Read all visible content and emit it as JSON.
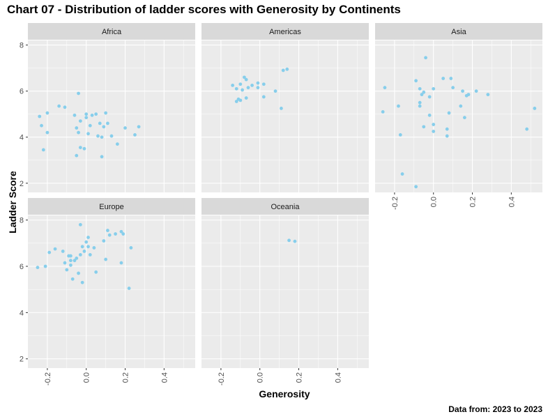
{
  "title": "Chart 07 - Distribution of ladder scores with Generosity by Continents",
  "caption": "Data from: 2023  to  2023",
  "chart_data": {
    "type": "scatter",
    "xlabel": "Generosity",
    "ylabel": "Ladder Score",
    "xlim": [
      -0.3,
      0.56
    ],
    "ylim": [
      1.6,
      8.2
    ],
    "x_ticks": [
      -0.2,
      0.0,
      0.2,
      0.4
    ],
    "x_tick_labels": [
      "-0.2",
      "0.0",
      "0.2",
      "0.4"
    ],
    "y_ticks": [
      2,
      4,
      6,
      8
    ],
    "y_tick_labels": [
      "2",
      "4",
      "6",
      "8"
    ],
    "point_color": "#87CEEB",
    "panel_background": "#EBEBEB",
    "strip_background": "#D9D9D9",
    "grid": true,
    "facets": [
      {
        "name": "Africa",
        "points": [
          [
            -0.24,
            4.9
          ],
          [
            -0.23,
            4.5
          ],
          [
            -0.22,
            3.45
          ],
          [
            -0.2,
            5.05
          ],
          [
            -0.2,
            4.2
          ],
          [
            -0.14,
            5.35
          ],
          [
            -0.11,
            5.3
          ],
          [
            -0.06,
            4.95
          ],
          [
            -0.05,
            4.4
          ],
          [
            -0.05,
            3.2
          ],
          [
            -0.04,
            4.2
          ],
          [
            -0.04,
            5.9
          ],
          [
            -0.03,
            3.55
          ],
          [
            -0.03,
            4.7
          ],
          [
            -0.01,
            3.5
          ],
          [
            0.0,
            4.85
          ],
          [
            0.0,
            5.0
          ],
          [
            0.01,
            4.15
          ],
          [
            0.02,
            4.5
          ],
          [
            0.03,
            4.95
          ],
          [
            0.05,
            5.0
          ],
          [
            0.06,
            4.05
          ],
          [
            0.07,
            4.6
          ],
          [
            0.08,
            4.0
          ],
          [
            0.08,
            3.15
          ],
          [
            0.09,
            4.45
          ],
          [
            0.1,
            5.05
          ],
          [
            0.11,
            4.6
          ],
          [
            0.13,
            4.05
          ],
          [
            0.16,
            3.7
          ],
          [
            0.2,
            4.4
          ],
          [
            0.25,
            4.1
          ],
          [
            0.27,
            4.45
          ]
        ]
      },
      {
        "name": "Americas",
        "points": [
          [
            -0.14,
            6.25
          ],
          [
            -0.12,
            5.55
          ],
          [
            -0.12,
            6.1
          ],
          [
            -0.11,
            5.65
          ],
          [
            -0.1,
            5.6
          ],
          [
            -0.1,
            6.3
          ],
          [
            -0.09,
            6.05
          ],
          [
            -0.08,
            6.6
          ],
          [
            -0.07,
            6.5
          ],
          [
            -0.07,
            5.7
          ],
          [
            -0.06,
            6.15
          ],
          [
            -0.04,
            6.25
          ],
          [
            -0.01,
            6.35
          ],
          [
            -0.01,
            6.15
          ],
          [
            0.02,
            6.3
          ],
          [
            0.02,
            5.75
          ],
          [
            0.08,
            6.0
          ],
          [
            0.11,
            5.25
          ],
          [
            0.12,
            6.9
          ],
          [
            0.14,
            6.95
          ]
        ]
      },
      {
        "name": "Asia",
        "points": [
          [
            -0.26,
            5.1
          ],
          [
            -0.25,
            6.15
          ],
          [
            -0.18,
            5.35
          ],
          [
            -0.17,
            4.1
          ],
          [
            -0.16,
            2.4
          ],
          [
            -0.09,
            1.85
          ],
          [
            -0.09,
            6.45
          ],
          [
            -0.07,
            6.1
          ],
          [
            -0.07,
            5.5
          ],
          [
            -0.07,
            5.35
          ],
          [
            -0.06,
            5.85
          ],
          [
            -0.05,
            4.45
          ],
          [
            -0.05,
            5.95
          ],
          [
            -0.04,
            7.45
          ],
          [
            -0.02,
            5.75
          ],
          [
            -0.02,
            4.95
          ],
          [
            0.0,
            4.55
          ],
          [
            0.0,
            4.25
          ],
          [
            0.0,
            6.1
          ],
          [
            0.05,
            6.55
          ],
          [
            0.07,
            4.35
          ],
          [
            0.07,
            4.05
          ],
          [
            0.08,
            5.05
          ],
          [
            0.09,
            6.55
          ],
          [
            0.1,
            6.15
          ],
          [
            0.14,
            5.35
          ],
          [
            0.15,
            6.0
          ],
          [
            0.16,
            4.85
          ],
          [
            0.17,
            5.8
          ],
          [
            0.18,
            5.85
          ],
          [
            0.22,
            6.0
          ],
          [
            0.28,
            5.85
          ],
          [
            0.48,
            4.35
          ],
          [
            0.52,
            5.25
          ]
        ]
      },
      {
        "name": "Europe",
        "points": [
          [
            -0.25,
            5.95
          ],
          [
            -0.21,
            6.0
          ],
          [
            -0.19,
            6.6
          ],
          [
            -0.16,
            6.75
          ],
          [
            -0.12,
            6.65
          ],
          [
            -0.11,
            6.15
          ],
          [
            -0.1,
            5.85
          ],
          [
            -0.09,
            6.45
          ],
          [
            -0.08,
            6.45
          ],
          [
            -0.08,
            6.25
          ],
          [
            -0.08,
            6.05
          ],
          [
            -0.07,
            5.45
          ],
          [
            -0.06,
            6.25
          ],
          [
            -0.05,
            6.35
          ],
          [
            -0.04,
            5.7
          ],
          [
            -0.03,
            7.8
          ],
          [
            -0.03,
            6.5
          ],
          [
            -0.02,
            5.3
          ],
          [
            -0.02,
            6.85
          ],
          [
            -0.01,
            6.65
          ],
          [
            0.0,
            7.05
          ],
          [
            0.01,
            7.25
          ],
          [
            0.01,
            6.85
          ],
          [
            0.02,
            6.5
          ],
          [
            0.04,
            6.8
          ],
          [
            0.05,
            5.75
          ],
          [
            0.09,
            7.1
          ],
          [
            0.1,
            6.3
          ],
          [
            0.11,
            7.55
          ],
          [
            0.12,
            7.35
          ],
          [
            0.15,
            7.4
          ],
          [
            0.18,
            6.15
          ],
          [
            0.18,
            7.5
          ],
          [
            0.19,
            7.4
          ],
          [
            0.22,
            5.05
          ],
          [
            0.23,
            6.8
          ]
        ]
      },
      {
        "name": "Oceania",
        "points": [
          [
            0.15,
            7.12
          ],
          [
            0.18,
            7.08
          ]
        ]
      }
    ]
  }
}
